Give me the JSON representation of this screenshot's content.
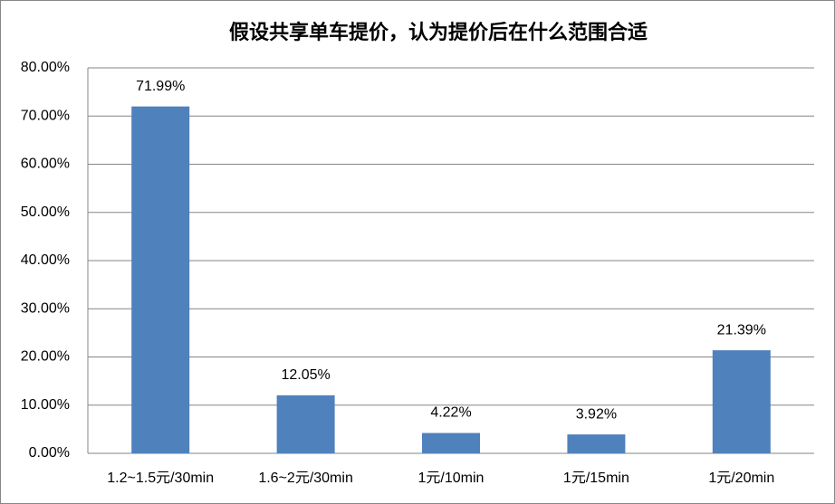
{
  "chart_data": {
    "type": "bar",
    "title": "假设共享单车提价，认为提价后在什么范围合适",
    "categories": [
      "1.2~1.5元/30min",
      "1.6~2元/30min",
      "1元/10min",
      "1元/15min",
      "1元/20min"
    ],
    "values": [
      71.99,
      12.05,
      4.22,
      3.92,
      21.39
    ],
    "value_labels": [
      "71.99%",
      "12.05%",
      "4.22%",
      "3.92%",
      "21.39%"
    ],
    "color": "#4f81bd",
    "ylim": [
      0,
      80
    ],
    "yticks": [
      {
        "value": 0,
        "label": "0.00%"
      },
      {
        "value": 10,
        "label": "10.00%"
      },
      {
        "value": 20,
        "label": "20.00%"
      },
      {
        "value": 30,
        "label": "30.00%"
      },
      {
        "value": 40,
        "label": "40.00%"
      },
      {
        "value": 50,
        "label": "50.00%"
      },
      {
        "value": 60,
        "label": "60.00%"
      },
      {
        "value": 70,
        "label": "70.00%"
      },
      {
        "value": 80,
        "label": "80.00%"
      }
    ],
    "grid": true
  }
}
